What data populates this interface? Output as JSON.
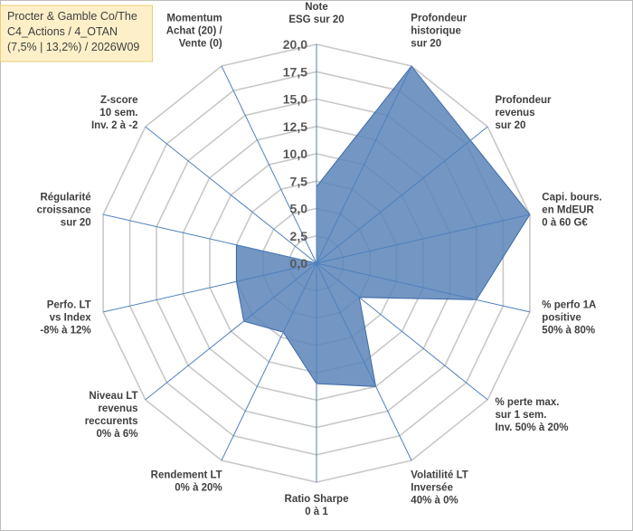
{
  "chart_data": {
    "type": "radar",
    "title": [
      "Procter & Gamble Co/The",
      "C4_Actions / 4_OTAN",
      "(7,5% | 13,2%) / 2026W09"
    ],
    "axis": {
      "min": 0,
      "max": 20,
      "step": 2.5,
      "tick_labels": [
        "0,0",
        "2,5",
        "5,0",
        "7,5",
        "10,0",
        "12,5",
        "15,0",
        "17,5",
        "20,0"
      ]
    },
    "categories": [
      [
        "Note",
        "ESG sur 20"
      ],
      [
        "Profondeur",
        "historique",
        "sur 20"
      ],
      [
        "Profondeur",
        "revenus",
        "sur 20"
      ],
      [
        "Capi. bours.",
        "en MdEUR",
        "0 à 60 G€"
      ],
      [
        "% perfo 1A",
        "positive",
        "50% à 80%"
      ],
      [
        "% perte max.",
        "sur 1 sem.",
        "Inv. 50% à 20%"
      ],
      [
        "Volatilité LT",
        "Inversée",
        "40% à 0%"
      ],
      [
        "Ratio Sharpe",
        "0 à 1"
      ],
      [
        "Rendement LT",
        "0% à 20%"
      ],
      [
        "Niveau LT",
        "revenus",
        "reccurents",
        "0% à 6%"
      ],
      [
        "Perfo. LT",
        "vs Index",
        "-8% à 12%"
      ],
      [
        "Régularité",
        "croissance",
        "sur 20"
      ],
      [
        "Z-score",
        "10 sem.",
        "Inv. 2 à -2"
      ],
      [
        "Momentum",
        "Achat (20) /",
        "Vente (0)"
      ]
    ],
    "series": [
      {
        "values": [
          7.0,
          20.0,
          18.0,
          20.0,
          15.0,
          5.0,
          12.5,
          11.0,
          7.0,
          8.5,
          7.5,
          7.5,
          0.0,
          0.0
        ],
        "color": "#5b84b8"
      }
    ],
    "grid": true,
    "legend": "none"
  }
}
